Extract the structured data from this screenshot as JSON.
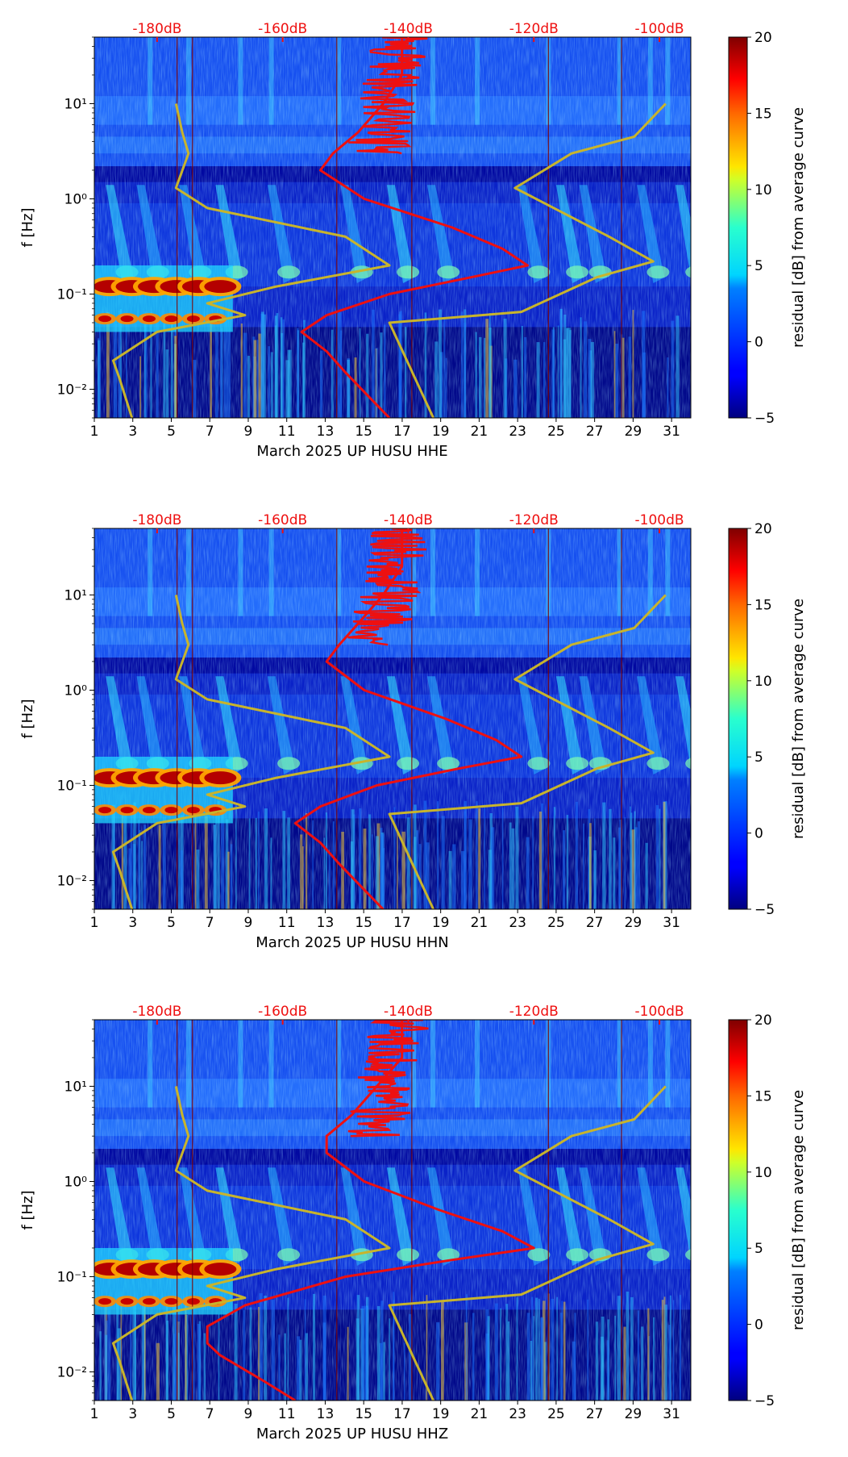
{
  "chart_data": [
    {
      "type": "heatmap",
      "xlabel": "March 2025 UP HUSU  HHE",
      "ylabel": "f [Hz]",
      "x_ticks": [
        "1",
        "3",
        "5",
        "7",
        "9",
        "11",
        "13",
        "15",
        "17",
        "19",
        "21",
        "23",
        "25",
        "27",
        "29",
        "31"
      ],
      "x_range": [
        1,
        32
      ],
      "y_scale": "log",
      "y_ticks": [
        "10⁻²",
        "10⁻¹",
        "10⁰",
        "10¹"
      ],
      "y_range": [
        0.005,
        50
      ],
      "top_ticks": [
        "-180dB",
        "-160dB",
        "-140dB",
        "-120dB",
        "-100dB"
      ],
      "colorbar": {
        "label": "residual [dB] from average curve",
        "ticks": [
          "−5",
          "0",
          "5",
          "10",
          "15",
          "20"
        ],
        "range": [
          -5,
          20
        ]
      },
      "noise_models": {
        "red_mean_curve_db_vs_hz": [
          [
            0.005,
            -143
          ],
          [
            0.008,
            -146
          ],
          [
            0.015,
            -150
          ],
          [
            0.025,
            -153
          ],
          [
            0.04,
            -157
          ],
          [
            0.06,
            -153
          ],
          [
            0.1,
            -143
          ],
          [
            0.15,
            -130
          ],
          [
            0.2,
            -121
          ],
          [
            0.3,
            -125
          ],
          [
            0.5,
            -133
          ],
          [
            1.0,
            -147
          ],
          [
            2.0,
            -154
          ],
          [
            3.0,
            -152
          ],
          [
            5.0,
            -148
          ],
          [
            10.0,
            -144
          ],
          [
            20.0,
            -141
          ],
          [
            50.0,
            -141
          ]
        ],
        "low_noise_model_db_vs_hz": [
          [
            0.005,
            -184
          ],
          [
            0.013,
            -186
          ],
          [
            0.02,
            -187
          ],
          [
            0.04,
            -180
          ],
          [
            0.06,
            -166
          ],
          [
            0.08,
            -172
          ],
          [
            0.12,
            -161
          ],
          [
            0.2,
            -143
          ],
          [
            0.4,
            -150
          ],
          [
            0.8,
            -172
          ],
          [
            1.3,
            -177
          ],
          [
            3.0,
            -175
          ],
          [
            5.0,
            -176
          ],
          [
            10.0,
            -177
          ]
        ],
        "high_noise_model_db_vs_hz": [
          [
            0.005,
            -136
          ],
          [
            0.05,
            -143
          ],
          [
            0.065,
            -122
          ],
          [
            0.15,
            -110
          ],
          [
            0.22,
            -101
          ],
          [
            0.4,
            -108
          ],
          [
            1.3,
            -123
          ],
          [
            3.0,
            -114
          ],
          [
            4.5,
            -104
          ],
          [
            10.0,
            -99
          ]
        ]
      }
    },
    {
      "type": "heatmap",
      "xlabel": "March 2025 UP HUSU  HHN",
      "ylabel": "f [Hz]",
      "x_ticks": [
        "1",
        "3",
        "5",
        "7",
        "9",
        "11",
        "13",
        "15",
        "17",
        "19",
        "21",
        "23",
        "25",
        "27",
        "29",
        "31"
      ],
      "x_range": [
        1,
        32
      ],
      "y_scale": "log",
      "y_ticks": [
        "10⁻²",
        "10⁻¹",
        "10⁰",
        "10¹"
      ],
      "y_range": [
        0.005,
        50
      ],
      "top_ticks": [
        "-180dB",
        "-160dB",
        "-140dB",
        "-120dB",
        "-100dB"
      ],
      "colorbar": {
        "label": "residual [dB] from average curve",
        "ticks": [
          "−5",
          "0",
          "5",
          "10",
          "15",
          "20"
        ],
        "range": [
          -5,
          20
        ]
      },
      "noise_models": {
        "red_mean_curve_db_vs_hz": [
          [
            0.005,
            -144
          ],
          [
            0.008,
            -147
          ],
          [
            0.015,
            -151
          ],
          [
            0.025,
            -154
          ],
          [
            0.04,
            -158
          ],
          [
            0.06,
            -154
          ],
          [
            0.1,
            -145
          ],
          [
            0.15,
            -132
          ],
          [
            0.2,
            -122
          ],
          [
            0.3,
            -126
          ],
          [
            0.5,
            -134
          ],
          [
            1.0,
            -147
          ],
          [
            2.0,
            -153
          ],
          [
            3.0,
            -151
          ],
          [
            5.0,
            -148
          ],
          [
            10.0,
            -144
          ],
          [
            20.0,
            -141
          ],
          [
            50.0,
            -141
          ]
        ],
        "low_noise_model_db_vs_hz": [
          [
            0.005,
            -184
          ],
          [
            0.013,
            -186
          ],
          [
            0.02,
            -187
          ],
          [
            0.04,
            -180
          ],
          [
            0.06,
            -166
          ],
          [
            0.08,
            -172
          ],
          [
            0.12,
            -161
          ],
          [
            0.2,
            -143
          ],
          [
            0.4,
            -150
          ],
          [
            0.8,
            -172
          ],
          [
            1.3,
            -177
          ],
          [
            3.0,
            -175
          ],
          [
            5.0,
            -176
          ],
          [
            10.0,
            -177
          ]
        ],
        "high_noise_model_db_vs_hz": [
          [
            0.005,
            -136
          ],
          [
            0.05,
            -143
          ],
          [
            0.065,
            -122
          ],
          [
            0.15,
            -110
          ],
          [
            0.22,
            -101
          ],
          [
            0.4,
            -108
          ],
          [
            1.3,
            -123
          ],
          [
            3.0,
            -114
          ],
          [
            4.5,
            -104
          ],
          [
            10.0,
            -99
          ]
        ]
      }
    },
    {
      "type": "heatmap",
      "xlabel": "March 2025 UP HUSU  HHZ",
      "ylabel": "f [Hz]",
      "x_ticks": [
        "1",
        "3",
        "5",
        "7",
        "9",
        "11",
        "13",
        "15",
        "17",
        "19",
        "21",
        "23",
        "25",
        "27",
        "29",
        "31"
      ],
      "x_range": [
        1,
        32
      ],
      "y_scale": "log",
      "y_ticks": [
        "10⁻²",
        "10⁻¹",
        "10⁰",
        "10¹"
      ],
      "y_range": [
        0.005,
        50
      ],
      "top_ticks": [
        "-180dB",
        "-160dB",
        "-140dB",
        "-120dB",
        "-100dB"
      ],
      "colorbar": {
        "label": "residual [dB] from average curve",
        "ticks": [
          "−5",
          "0",
          "5",
          "10",
          "15",
          "20"
        ],
        "range": [
          -5,
          20
        ]
      },
      "noise_models": {
        "red_mean_curve_db_vs_hz": [
          [
            0.005,
            -158
          ],
          [
            0.008,
            -163
          ],
          [
            0.015,
            -170
          ],
          [
            0.02,
            -172
          ],
          [
            0.03,
            -172
          ],
          [
            0.05,
            -166
          ],
          [
            0.1,
            -150
          ],
          [
            0.15,
            -133
          ],
          [
            0.2,
            -120
          ],
          [
            0.3,
            -125
          ],
          [
            0.5,
            -135
          ],
          [
            1.0,
            -147
          ],
          [
            2.0,
            -153
          ],
          [
            3.0,
            -153
          ],
          [
            5.0,
            -149
          ],
          [
            10.0,
            -145
          ],
          [
            20.0,
            -141
          ],
          [
            50.0,
            -141
          ]
        ],
        "low_noise_model_db_vs_hz": [
          [
            0.005,
            -184
          ],
          [
            0.013,
            -186
          ],
          [
            0.02,
            -187
          ],
          [
            0.04,
            -180
          ],
          [
            0.06,
            -166
          ],
          [
            0.08,
            -172
          ],
          [
            0.12,
            -161
          ],
          [
            0.2,
            -143
          ],
          [
            0.4,
            -150
          ],
          [
            0.8,
            -172
          ],
          [
            1.3,
            -177
          ],
          [
            3.0,
            -175
          ],
          [
            5.0,
            -176
          ],
          [
            10.0,
            -177
          ]
        ],
        "high_noise_model_db_vs_hz": [
          [
            0.005,
            -136
          ],
          [
            0.05,
            -143
          ],
          [
            0.065,
            -122
          ],
          [
            0.15,
            -110
          ],
          [
            0.22,
            -101
          ],
          [
            0.4,
            -108
          ],
          [
            1.3,
            -123
          ],
          [
            3.0,
            -114
          ],
          [
            4.5,
            -104
          ],
          [
            10.0,
            -99
          ]
        ]
      }
    }
  ]
}
